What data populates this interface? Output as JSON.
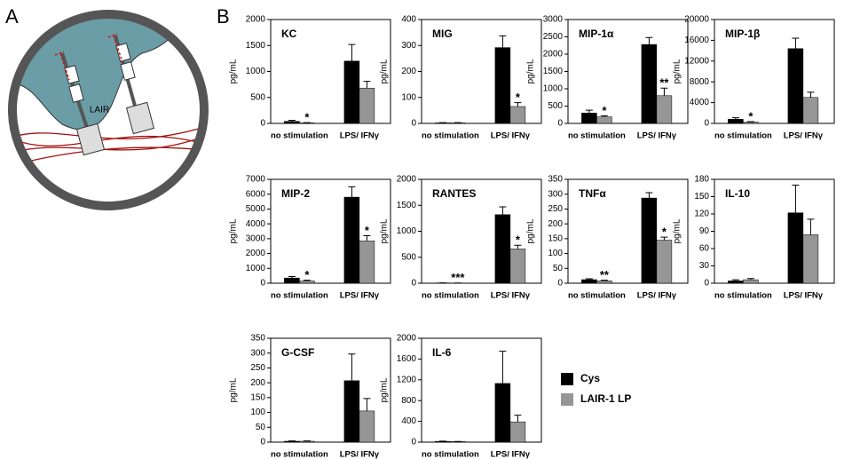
{
  "panel_labels": [
    "A",
    "B"
  ],
  "illustration_label": "LAIR",
  "legend": [
    {
      "name": "Cys",
      "color": "#000000"
    },
    {
      "name": "LAIR-1 LP",
      "color": "#969696"
    }
  ],
  "chart_data": [
    {
      "type": "bar",
      "title": "KC",
      "y_label": "pg/mL",
      "categories": [
        "no stimulation",
        "LPS/ IFNγ"
      ],
      "ylim": [
        0,
        2000
      ],
      "yticks": [
        0,
        500,
        1000,
        1500,
        2000
      ],
      "series": [
        {
          "values": [
            40,
            1200
          ],
          "errors": [
            20,
            320
          ]
        },
        {
          "values": [
            10,
            680
          ],
          "errors": [
            5,
            130
          ],
          "significance": [
            "*",
            null
          ]
        }
      ]
    },
    {
      "type": "bar",
      "title": "MIG",
      "y_label": "pg/mL",
      "categories": [
        "no stimulation",
        "LPS/ IFNγ"
      ],
      "ylim": [
        0,
        400
      ],
      "yticks": [
        0,
        100,
        200,
        300,
        400
      ],
      "series": [
        {
          "values": [
            2,
            292
          ],
          "errors": [
            1,
            45
          ]
        },
        {
          "values": [
            2,
            65
          ],
          "errors": [
            1,
            15
          ],
          "significance": [
            null,
            "*"
          ]
        }
      ]
    },
    {
      "type": "bar",
      "title": "MIP-1α",
      "y_label": "pg/mL",
      "categories": [
        "no stimulation",
        "LPS/ IFNγ"
      ],
      "ylim": [
        0,
        3000
      ],
      "yticks": [
        0,
        500,
        1000,
        1500,
        2000,
        2500,
        3000
      ],
      "series": [
        {
          "values": [
            300,
            2280
          ],
          "errors": [
            80,
            200
          ]
        },
        {
          "values": [
            190,
            800
          ],
          "errors": [
            30,
            220
          ],
          "significance": [
            "*",
            "**"
          ]
        }
      ]
    },
    {
      "type": "bar",
      "title": "MIP-1β",
      "y_label": "pg/mL",
      "categories": [
        "no stimulation",
        "LPS/ IFNγ"
      ],
      "ylim": [
        0,
        20000
      ],
      "yticks": [
        0,
        4000,
        8000,
        12000,
        16000,
        20000
      ],
      "series": [
        {
          "values": [
            800,
            14400
          ],
          "errors": [
            300,
            2000
          ]
        },
        {
          "values": [
            250,
            5000
          ],
          "errors": [
            100,
            1000
          ],
          "significance": [
            "*",
            null
          ]
        }
      ]
    },
    {
      "type": "bar",
      "title": "MIP-2",
      "y_label": "pg/mL",
      "categories": [
        "no stimulation",
        "LPS/ IFNγ"
      ],
      "ylim": [
        0,
        7000
      ],
      "yticks": [
        0,
        1000,
        2000,
        3000,
        4000,
        5000,
        6000,
        7000
      ],
      "series": [
        {
          "values": [
            350,
            5800
          ],
          "errors": [
            100,
            700
          ]
        },
        {
          "values": [
            150,
            2850
          ],
          "errors": [
            50,
            350
          ],
          "significance": [
            "*",
            "*"
          ]
        }
      ]
    },
    {
      "type": "bar",
      "title": "RANTES",
      "y_label": "pg/mL",
      "categories": [
        "no stimulation",
        "LPS/ IFNγ"
      ],
      "ylim": [
        0,
        2000
      ],
      "yticks": [
        0,
        500,
        1000,
        1500,
        2000
      ],
      "series": [
        {
          "values": [
            5,
            1320
          ],
          "errors": [
            2,
            150
          ]
        },
        {
          "values": [
            3,
            660
          ],
          "errors": [
            1,
            70
          ],
          "significance": [
            "***",
            "*"
          ]
        }
      ]
    },
    {
      "type": "bar",
      "title": "TNFα",
      "y_label": "pg/mL",
      "categories": [
        "no stimulation",
        "LPS/ IFNγ"
      ],
      "ylim": [
        0,
        350
      ],
      "yticks": [
        0,
        50,
        100,
        150,
        200,
        250,
        300,
        350
      ],
      "series": [
        {
          "values": [
            12,
            287
          ],
          "errors": [
            3,
            18
          ]
        },
        {
          "values": [
            8,
            145
          ],
          "errors": [
            2,
            10
          ],
          "significance": [
            "**",
            "*"
          ]
        }
      ]
    },
    {
      "type": "bar",
      "title": "IL-10",
      "y_label": "pg/mL",
      "categories": [
        "no stimulation",
        "LPS/ IFNγ"
      ],
      "ylim": [
        0,
        180
      ],
      "yticks": [
        0,
        30,
        60,
        90,
        120,
        150,
        180
      ],
      "series": [
        {
          "values": [
            4,
            122
          ],
          "errors": [
            2,
            48
          ]
        },
        {
          "values": [
            6,
            84
          ],
          "errors": [
            2,
            27
          ]
        }
      ]
    },
    {
      "type": "bar",
      "title": "G-CSF",
      "y_label": "pg/mL",
      "categories": [
        "no stimulation",
        "LPS/ IFNγ"
      ],
      "ylim": [
        0,
        350
      ],
      "yticks": [
        0,
        50,
        100,
        150,
        200,
        250,
        300,
        350
      ],
      "series": [
        {
          "values": [
            3,
            207
          ],
          "errors": [
            1,
            90
          ]
        },
        {
          "values": [
            3,
            105
          ],
          "errors": [
            1,
            42
          ]
        }
      ]
    },
    {
      "type": "bar",
      "title": "IL-6",
      "y_label": "pg/mL",
      "categories": [
        "no stimulation",
        "LPS/ IFNγ"
      ],
      "ylim": [
        0,
        2000
      ],
      "yticks": [
        0,
        400,
        800,
        1200,
        1600,
        2000
      ],
      "series": [
        {
          "values": [
            15,
            1130
          ],
          "errors": [
            5,
            620
          ]
        },
        {
          "values": [
            10,
            390
          ],
          "errors": [
            3,
            130
          ]
        }
      ]
    }
  ]
}
